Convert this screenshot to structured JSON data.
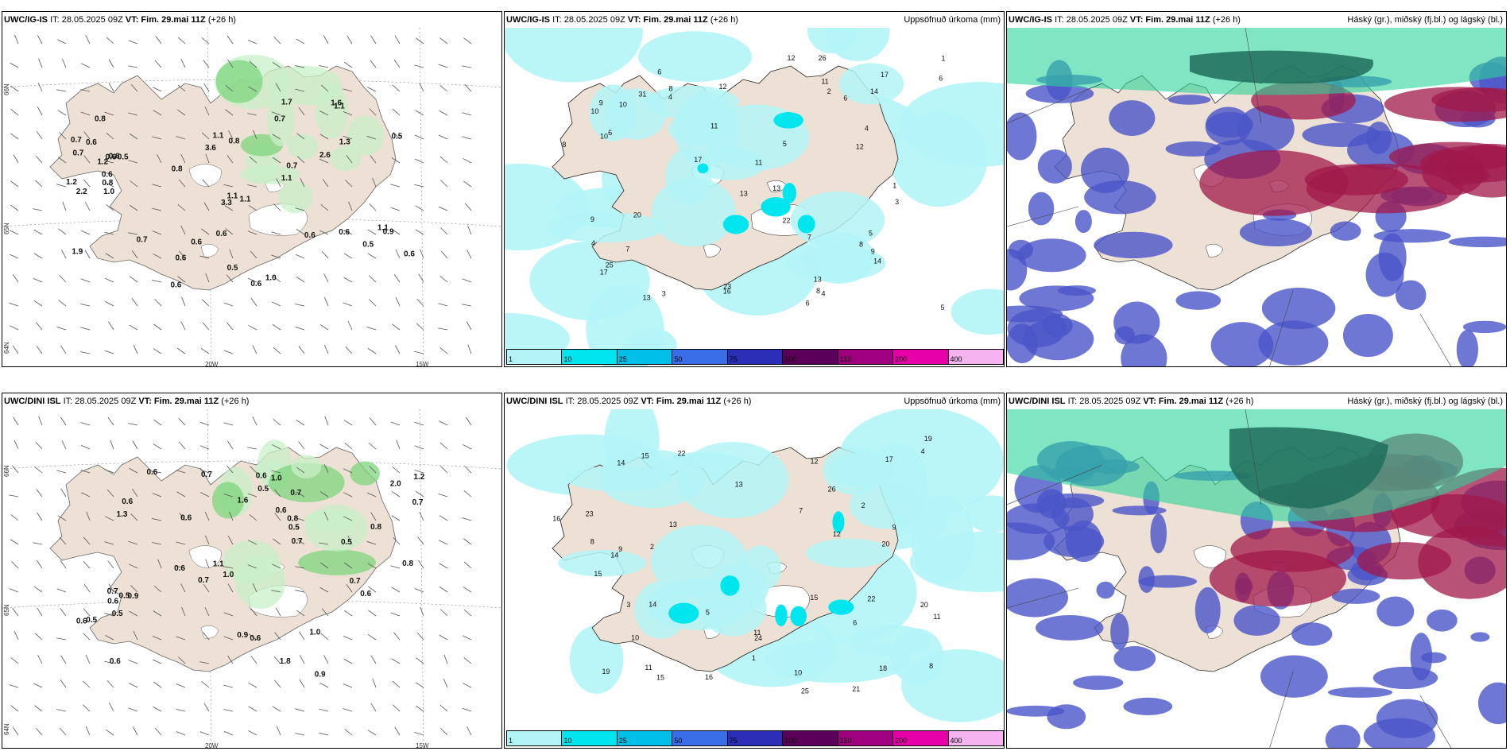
{
  "rows": [
    {
      "model": "UWC/IG-IS",
      "it": "IT: 28.05.2025 09Z",
      "vt_label": "VT:",
      "vt": "Fim. 29.mai 11Z",
      "lead": "(+26 h)",
      "lat_labels": [
        "66N",
        "65N",
        "64N"
      ],
      "lon_labels": [
        "20W",
        "15W"
      ]
    },
    {
      "model": "UWC/DINI ISL",
      "it": "IT: 28.05.2025 09Z",
      "vt_label": "VT:",
      "vt": "Fim. 29.mai 11Z",
      "lead": "(+26 h)",
      "lat_labels": [
        "66N",
        "65N",
        "64N"
      ],
      "lon_labels": [
        "20W",
        "15W"
      ]
    }
  ],
  "precip_title": "Uppsöfnuð úrkoma (mm)",
  "cloud_title": "Háský (gr.), miðský (fj.bl.) og lágský (bl.)",
  "legend": {
    "labels": [
      "1",
      "10",
      "25",
      "50",
      "75",
      "100",
      "150",
      "200",
      "400"
    ],
    "colors": [
      "#b3f5f7",
      "#00e5ee",
      "#00bfe8",
      "#3a6ee8",
      "#2b2fb8",
      "#5a005a",
      "#a0007f",
      "#e600a8",
      "#f5b3f0"
    ]
  },
  "colors": {
    "land": "#ede0d4",
    "sea": "#ffffff",
    "precip_light": "#b3f5f7",
    "precip_mid": "#00e5ee",
    "green_light": "#c8f0c8",
    "green_mid": "#7ed67e",
    "cloud_low": "#4a55c8",
    "cloud_mid": "#a0184a",
    "cloud_high": "#2ad49a"
  },
  "values": {
    "r0_wind": [
      "0.5",
      "1.0",
      "0.7",
      "1.7",
      "0.7",
      "0.6",
      "0.7",
      "0.6",
      "0.7",
      "0.6",
      "0.6",
      "1.1",
      "0.6",
      "1.2",
      "0.8",
      "0.5",
      "0.6",
      "0.6",
      "0.6",
      "1.1",
      "1.1",
      "0.6",
      "0.8",
      "1.3",
      "1.1",
      "0.5",
      "1.0",
      "1.1",
      "0.6",
      "0.7",
      "0.8",
      "1.6",
      "3.6",
      "1.2",
      "2.6",
      "2.2",
      "3.3",
      "1.9",
      "0.6",
      "1.1",
      "0.6",
      "0.5",
      "0.8",
      "0.9"
    ],
    "r0_precip": [
      "1",
      "9",
      "5",
      "6",
      "4",
      "8",
      "10",
      "14",
      "17",
      "14",
      "13",
      "11",
      "6",
      "25",
      "26",
      "20",
      "10",
      "23",
      "13",
      "12",
      "8",
      "9",
      "11",
      "12",
      "13",
      "17",
      "13",
      "31",
      "6",
      "17",
      "12",
      "22",
      "16",
      "10",
      "11",
      "9",
      "5",
      "4",
      "3",
      "6",
      "4",
      "7",
      "8",
      "5",
      "3",
      "4",
      "6",
      "7",
      "8",
      "2",
      "1"
    ],
    "r1_wind": [
      "0.7",
      "0.8",
      "0.7",
      "1.0",
      "0.8",
      "0.7",
      "0.6",
      "0.5",
      "0.7",
      "0.6",
      "0.6",
      "0.6",
      "0.9",
      "0.6",
      "0.5",
      "1.0",
      "0.6",
      "0.5",
      "0.6",
      "1.8",
      "0.9",
      "0.7",
      "0.5",
      "0.6",
      "0.9",
      "1.1",
      "0.7",
      "1.2",
      "0.7",
      "1.3",
      "1.6",
      "0.5",
      "1.0",
      "0.6",
      "0.6",
      "0.8",
      "0.5",
      "2.0",
      "0.6"
    ],
    "r1_precip": [
      "2",
      "8",
      "9",
      "15",
      "14",
      "16",
      "15",
      "19",
      "20",
      "21",
      "24",
      "19",
      "11",
      "13",
      "22",
      "26",
      "25",
      "20",
      "15",
      "17",
      "16",
      "12",
      "15",
      "14",
      "10",
      "11",
      "12",
      "13",
      "23",
      "22",
      "18",
      "14",
      "4",
      "7",
      "6",
      "5",
      "3",
      "2",
      "1",
      "9",
      "8",
      "10",
      "11"
    ]
  }
}
